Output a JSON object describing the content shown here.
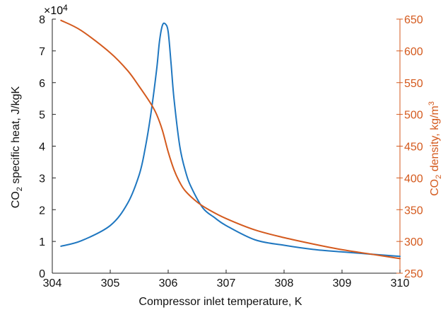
{
  "chart_data": {
    "type": "line",
    "xlabel": "Compressor inlet temperature, K",
    "ylabel_left": {
      "main": "CO",
      "sub": "2",
      "rest": " specific heat, J/kgK"
    },
    "ylabel_right": {
      "main": "CO",
      "sub": "2",
      "rest": " density, kg/m",
      "sup": "3"
    },
    "left_multiplier": {
      "base": "×10",
      "exp": "4"
    },
    "xlim": [
      304,
      310
    ],
    "ylim_left": [
      0,
      8
    ],
    "ylim_right": [
      250,
      650
    ],
    "x_ticks": [
      "304",
      "305",
      "306",
      "307",
      "308",
      "309",
      "310"
    ],
    "y_ticks_left": [
      "0",
      "1",
      "2",
      "3",
      "4",
      "5",
      "6",
      "7",
      "8"
    ],
    "y_ticks_right": [
      "250",
      "300",
      "350",
      "400",
      "450",
      "500",
      "550",
      "600",
      "650"
    ],
    "colors": {
      "left_series": "#1f77c0",
      "right_series": "#d45a1e",
      "axis": "#222222"
    },
    "series": [
      {
        "axis": "left",
        "x": [
          304.15,
          304.5,
          305.0,
          305.3,
          305.5,
          305.6,
          305.7,
          305.8,
          305.85,
          305.9,
          305.95,
          306.0,
          306.05,
          306.1,
          306.2,
          306.3,
          306.4,
          306.6,
          306.8,
          307.0,
          307.5,
          308.0,
          308.5,
          309.0,
          309.5,
          310.0
        ],
        "values": [
          0.85,
          1.02,
          1.5,
          2.2,
          3.1,
          3.9,
          5.0,
          6.4,
          7.3,
          7.8,
          7.85,
          7.6,
          6.6,
          5.5,
          4.0,
          3.2,
          2.7,
          2.05,
          1.75,
          1.5,
          1.05,
          0.88,
          0.75,
          0.67,
          0.6,
          0.53
        ]
      },
      {
        "axis": "right",
        "x": [
          304.15,
          304.5,
          305.0,
          305.3,
          305.5,
          305.7,
          305.8,
          305.9,
          306.0,
          306.1,
          306.2,
          306.3,
          306.5,
          306.7,
          307.0,
          307.5,
          308.0,
          308.5,
          309.0,
          309.5,
          310.0
        ],
        "values": [
          648,
          632,
          597,
          569,
          544,
          517,
          500,
          475,
          441,
          413,
          393,
          379,
          362,
          350,
          336,
          318,
          306,
          296,
          287,
          280,
          273
        ]
      }
    ]
  }
}
